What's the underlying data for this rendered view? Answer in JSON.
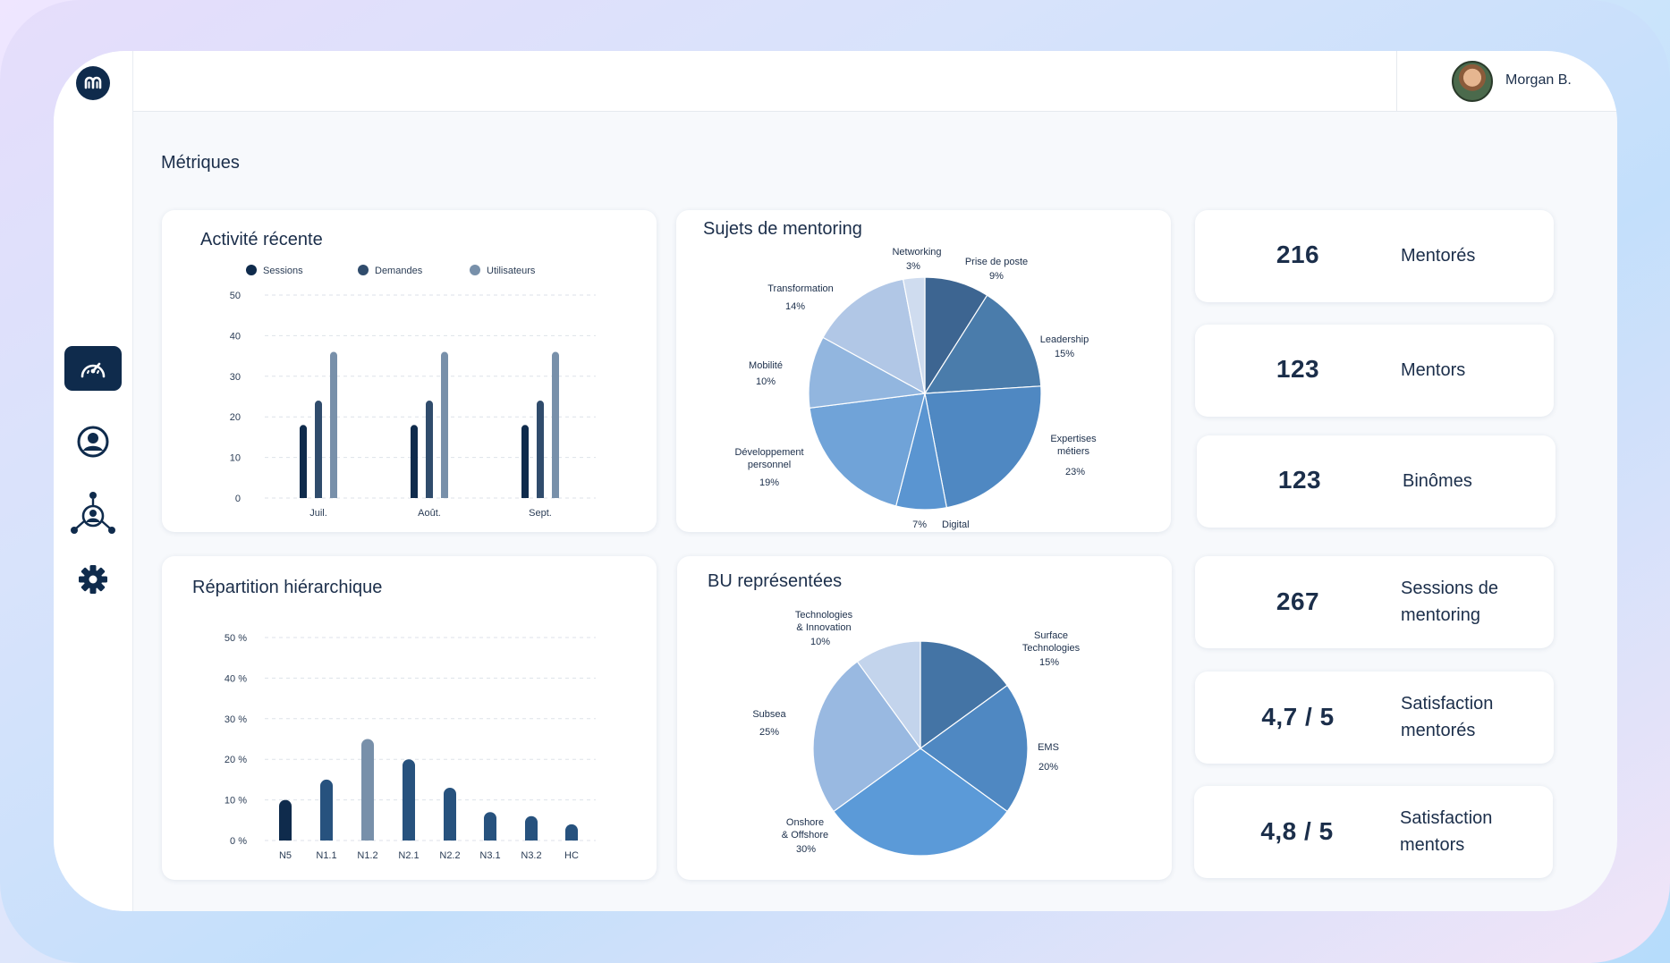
{
  "user": {
    "name": "Morgan B."
  },
  "page": {
    "title": "Métriques"
  },
  "nav": [
    {
      "name": "dashboard",
      "icon": "speedometer-icon",
      "active": true
    },
    {
      "name": "profile",
      "icon": "user-circle-icon",
      "active": false
    },
    {
      "name": "network",
      "icon": "network-icon",
      "active": false
    },
    {
      "name": "settings",
      "icon": "gear-icon",
      "active": false
    }
  ],
  "colors": {
    "navy": "#0f2b4c",
    "c1": "#0f2b4c",
    "c2": "#304c6c",
    "c3": "#7890aa"
  },
  "activity": {
    "title": "Activité récente",
    "legend": [
      "Sessions",
      "Demandes",
      "Utilisateurs"
    ],
    "chart_data": {
      "type": "bar",
      "categories": [
        "Juil.",
        "Août.",
        "Sept."
      ],
      "series": [
        {
          "name": "Sessions",
          "values": [
            18,
            18,
            18
          ]
        },
        {
          "name": "Demandes",
          "values": [
            24,
            24,
            24
          ]
        },
        {
          "name": "Utilisateurs",
          "values": [
            36,
            36,
            36
          ]
        }
      ],
      "ylim": [
        0,
        50
      ],
      "yticks": [
        "0",
        "10",
        "20",
        "30",
        "40",
        "50"
      ]
    }
  },
  "topics": {
    "title": "Sujets de mentoring",
    "chart_data": {
      "type": "pie",
      "slices": [
        {
          "label": "Prise de poste",
          "pct": "9%",
          "value": 9,
          "color": "#3d6591"
        },
        {
          "label": "Leadership",
          "pct": "15%",
          "value": 15,
          "color": "#4a7cab"
        },
        {
          "label": "Expertises métiers",
          "pct": "23%",
          "value": 23,
          "color": "#4f88c2"
        },
        {
          "label": "Digital",
          "pct": "7%",
          "value": 7,
          "color": "#5a95d1"
        },
        {
          "label": "Développement personnel",
          "pct": "19%",
          "value": 19,
          "color": "#70a3d8"
        },
        {
          "label": "Mobilité",
          "pct": "10%",
          "value": 10,
          "color": "#92b6df"
        },
        {
          "label": "Transformation",
          "pct": "14%",
          "value": 14,
          "color": "#b1c7e6"
        },
        {
          "label": "Networking",
          "pct": "3%",
          "value": 3,
          "color": "#cfdcef"
        }
      ]
    }
  },
  "hierarchy": {
    "title": "Répartition hiérarchique",
    "chart_data": {
      "type": "bar",
      "categories": [
        "N5",
        "N1.1",
        "N1.2",
        "N2.1",
        "N2.2",
        "N3.1",
        "N3.2",
        "HC"
      ],
      "values": [
        10,
        15,
        25,
        20,
        13,
        7,
        6,
        4
      ],
      "highlight_index": 2,
      "ylim": [
        0,
        50
      ],
      "yticks": [
        "0 %",
        "10 %",
        "20 %",
        "30 %",
        "40 %",
        "50 %"
      ]
    }
  },
  "bu": {
    "title": "BU représentées",
    "chart_data": {
      "type": "pie",
      "slices": [
        {
          "label": "Surface Technologies",
          "pct": "15%",
          "value": 15,
          "color": "#4474a5"
        },
        {
          "label": "EMS",
          "pct": "20%",
          "value": 20,
          "color": "#4f88c2"
        },
        {
          "label": "Onshore & Offshore",
          "pct": "30%",
          "value": 30,
          "color": "#5b9ad8"
        },
        {
          "label": "Subsea",
          "pct": "25%",
          "value": 25,
          "color": "#99b9e1"
        },
        {
          "label": "Technologies & Innovation",
          "pct": "10%",
          "value": 10,
          "color": "#c3d4ec"
        }
      ]
    }
  },
  "metrics": [
    {
      "value": "216",
      "label": "Mentorés"
    },
    {
      "value": "123",
      "label": "Mentors"
    },
    {
      "value": "123",
      "label": "Binômes"
    },
    {
      "value": "267",
      "label": "Sessions de mentoring"
    },
    {
      "value": "4,7 / 5",
      "label": "Satisfaction mentorés"
    },
    {
      "value": "4,8 / 5",
      "label": "Satisfaction mentors"
    }
  ]
}
